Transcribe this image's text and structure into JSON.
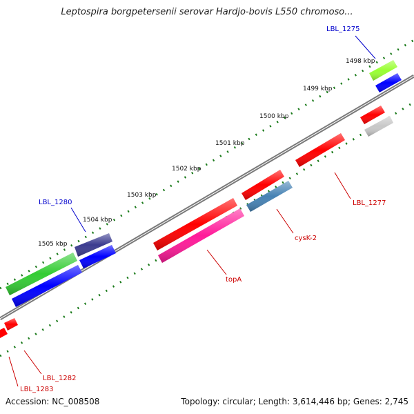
{
  "title": "Leptospira borgpetersenii serovar Hardjo-bovis L550 chromoso...",
  "footer": {
    "accession": "Accession: NC_008508",
    "info": "Topology: circular; Length: 3,614,446 bp; Genes: 2,745"
  },
  "scale_labels": [
    "1498 kbp",
    "1499 kbp",
    "1500 kbp",
    "1501 kbp",
    "1502 kbp",
    "1503 kbp",
    "1504 kbp",
    "1505 kbp"
  ],
  "gene_labels": [
    {
      "id": "lbl-1275",
      "text": "LBL_1275",
      "color": "#0000cc"
    },
    {
      "id": "lbl-1277",
      "text": "LBL_1277",
      "color": "#cc0000"
    },
    {
      "id": "cysk-2",
      "text": "cysK-2",
      "color": "#cc0000"
    },
    {
      "id": "topa",
      "text": "topA",
      "color": "#cc0000"
    },
    {
      "id": "lbl-1280",
      "text": "LBL_1280",
      "color": "#0000cc"
    },
    {
      "id": "lbl-1282",
      "text": "LBL_1282",
      "color": "#cc0000"
    },
    {
      "id": "lbl-1283",
      "text": "LBL_1283",
      "color": "#cc0000"
    }
  ],
  "colors": {
    "backbone": "#7a7a7a",
    "tick": "#1a7a1a",
    "red": "#ff0000",
    "blue": "#0000ff",
    "green": "#33cc33",
    "lime": "#99ff33",
    "navy": "#3b3b8f",
    "magenta": "#ff1a99",
    "steel": "#4682b4",
    "gray": "#c8c8c8"
  }
}
